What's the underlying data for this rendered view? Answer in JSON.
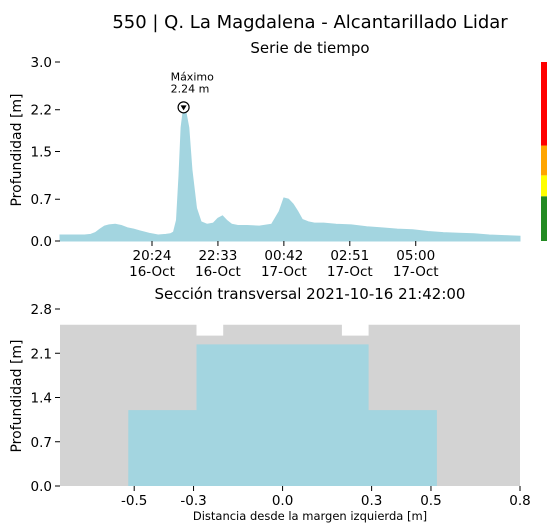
{
  "page": {
    "title": "550 | Q. La Magdalena - Alcantarillado Lidar"
  },
  "chart_data": [
    {
      "type": "area",
      "title": "Serie de tiempo",
      "ylabel": "Profundidad [m]",
      "xlabel": "",
      "ylim": [
        0,
        3.0
      ],
      "yticks": [
        "0.0",
        "0.7",
        "1.5",
        "2.2",
        "3.0"
      ],
      "xticks": [
        {
          "time": "20:24",
          "date": "16-Oct"
        },
        {
          "time": "22:33",
          "date": "16-Oct"
        },
        {
          "time": "00:42",
          "date": "17-Oct"
        },
        {
          "time": "02:51",
          "date": "17-Oct"
        },
        {
          "time": "05:00",
          "date": "17-Oct"
        }
      ],
      "x_hours": [
        0.0,
        0.5,
        0.8,
        1.0,
        1.15,
        1.3,
        1.45,
        1.6,
        1.8,
        2.0,
        2.2,
        2.4,
        2.6,
        2.9,
        3.2,
        3.45,
        3.6,
        3.7,
        3.8,
        3.88,
        3.95,
        4.03,
        4.1,
        4.2,
        4.3,
        4.45,
        4.6,
        4.8,
        5.0,
        5.15,
        5.3,
        5.45,
        5.6,
        5.8,
        6.1,
        6.5,
        6.9,
        7.15,
        7.3,
        7.45,
        7.6,
        7.75,
        7.9,
        8.1,
        8.3,
        8.6,
        9.0,
        9.5,
        10.0,
        10.5,
        11.0,
        11.5,
        12.0,
        12.5,
        13.0,
        13.5,
        14.0,
        14.5,
        15.0
      ],
      "values": [
        0.1,
        0.1,
        0.1,
        0.11,
        0.14,
        0.2,
        0.25,
        0.27,
        0.28,
        0.26,
        0.22,
        0.2,
        0.17,
        0.13,
        0.1,
        0.11,
        0.12,
        0.15,
        0.35,
        1.1,
        1.9,
        2.24,
        2.18,
        1.9,
        1.2,
        0.55,
        0.32,
        0.28,
        0.3,
        0.38,
        0.42,
        0.34,
        0.28,
        0.26,
        0.26,
        0.25,
        0.28,
        0.5,
        0.72,
        0.7,
        0.62,
        0.5,
        0.36,
        0.32,
        0.3,
        0.3,
        0.28,
        0.27,
        0.24,
        0.22,
        0.2,
        0.19,
        0.16,
        0.14,
        0.13,
        0.12,
        0.1,
        0.09,
        0.08
      ],
      "x_tick_hours": [
        3.0,
        5.15,
        7.3,
        9.45,
        11.6
      ],
      "annotation": {
        "label": "Máximo",
        "value_text": "2.24 m",
        "x_hour": 4.03,
        "y": 2.24
      },
      "color": "#a3d5e0",
      "threshold_bar": [
        {
          "from": 0.0,
          "to": 0.75,
          "color": "#228b22"
        },
        {
          "from": 0.75,
          "to": 1.1,
          "color": "#ffff00"
        },
        {
          "from": 1.1,
          "to": 1.6,
          "color": "#ffa500"
        },
        {
          "from": 1.6,
          "to": 3.0,
          "color": "#ff0000"
        }
      ]
    },
    {
      "type": "area",
      "title": "Sección transversal 2021-10-16 21:42:00",
      "ylabel": "Profundidad [m]",
      "xlabel": "Distancia desde la margen izquierda [m]",
      "xlim": [
        -0.75,
        0.8
      ],
      "ylim": [
        0,
        2.8
      ],
      "xticks": [
        -0.5,
        -0.3,
        0.0,
        0.3,
        0.5,
        0.8
      ],
      "xtick_labels": [
        "-0.5",
        "-0.3",
        "0.0",
        "0.3",
        "0.5",
        "0.8"
      ],
      "yticks": [
        0.0,
        0.7,
        1.4,
        2.1,
        2.8
      ],
      "ytick_labels": [
        "0.0",
        "0.7",
        "1.4",
        "2.1",
        "2.8"
      ],
      "water_level": 2.24,
      "water_color": "#a3d5e0",
      "ground_color": "#d3d3d3",
      "section_profile": [
        {
          "x": -0.75,
          "y": 2.55
        },
        {
          "x": -0.29,
          "y": 2.55
        },
        {
          "x": -0.29,
          "y": 2.38
        },
        {
          "x": -0.2,
          "y": 2.38
        },
        {
          "x": -0.2,
          "y": 2.55
        },
        {
          "x": 0.2,
          "y": 2.55
        },
        {
          "x": 0.2,
          "y": 2.38
        },
        {
          "x": 0.29,
          "y": 2.38
        },
        {
          "x": 0.29,
          "y": 2.55
        },
        {
          "x": 0.8,
          "y": 2.55
        }
      ],
      "channel_profile": [
        {
          "x": -0.52,
          "y": 1.2
        },
        {
          "x": -0.29,
          "y": 1.2
        },
        {
          "x": -0.29,
          "y": 2.24
        },
        {
          "x": 0.29,
          "y": 2.24
        },
        {
          "x": 0.29,
          "y": 1.2
        },
        {
          "x": 0.52,
          "y": 1.2
        }
      ]
    }
  ]
}
